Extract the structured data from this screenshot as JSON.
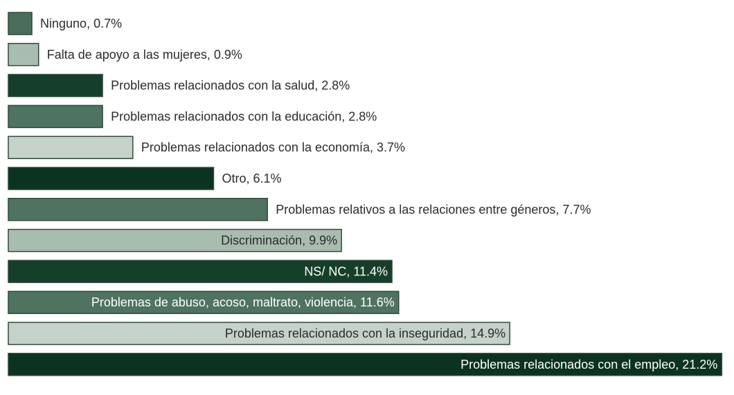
{
  "chart_data": {
    "type": "bar",
    "orientation": "horizontal",
    "title": "",
    "xlabel": "",
    "ylabel": "",
    "grid": false,
    "legend": "none",
    "xlim": [
      0,
      21.2
    ],
    "categories": [
      "Ninguno",
      "Falta de apoyo a las mujeres",
      "Problemas relacionados con la salud",
      "Problemas relacionados con la educación",
      "Problemas relacionados con la economía",
      "Otro",
      "Problemas relativos a las relaciones entre géneros",
      "Discriminación",
      "NS/ NC",
      "Problemas de abuso, acoso, maltrato, violencia",
      "Problemas relacionados con la inseguridad",
      "Problemas relacionados con el empleo"
    ],
    "values": [
      0.7,
      0.9,
      2.8,
      2.8,
      3.7,
      6.1,
      7.7,
      9.9,
      11.4,
      11.6,
      14.9,
      21.2
    ],
    "labels": [
      "Ninguno, 0.7%",
      "Falta de apoyo a las mujeres, 0.9%",
      "Problemas relacionados con la salud, 2.8%",
      "Problemas relacionados con la educación, 2.8%",
      "Problemas relacionados con la economía, 3.7%",
      "Otro, 6.1%",
      "Problemas relativos a las relaciones entre géneros, 7.7%",
      "Discriminación, 9.9%",
      "NS/ NC, 11.4%",
      "Problemas de abuso, acoso, maltrato, violencia, 11.6%",
      "Problemas relacionados con la inseguridad, 14.9%",
      "Problemas relacionados con el empleo, 21.2%"
    ],
    "label_position": [
      "outside",
      "outside",
      "outside",
      "outside",
      "outside",
      "outside",
      "outside",
      "inside",
      "inside",
      "inside",
      "inside",
      "inside"
    ],
    "colors": [
      "#4a6e5a",
      "#a9bcb0",
      "#163f2b",
      "#4e7360",
      "#c5d2c9",
      "#0b3320",
      "#4e7360",
      "#a9bcb0",
      "#163f2b",
      "#4e7360",
      "#c5d2c9",
      "#0b3320"
    ],
    "label_colors": [
      "#2b2b2b",
      "#2b2b2b",
      "#2b2b2b",
      "#2b2b2b",
      "#2b2b2b",
      "#2b2b2b",
      "#2b2b2b",
      "#2b2b2b",
      "#ffffff",
      "#ffffff",
      "#2b2b2b",
      "#ffffff"
    ]
  }
}
